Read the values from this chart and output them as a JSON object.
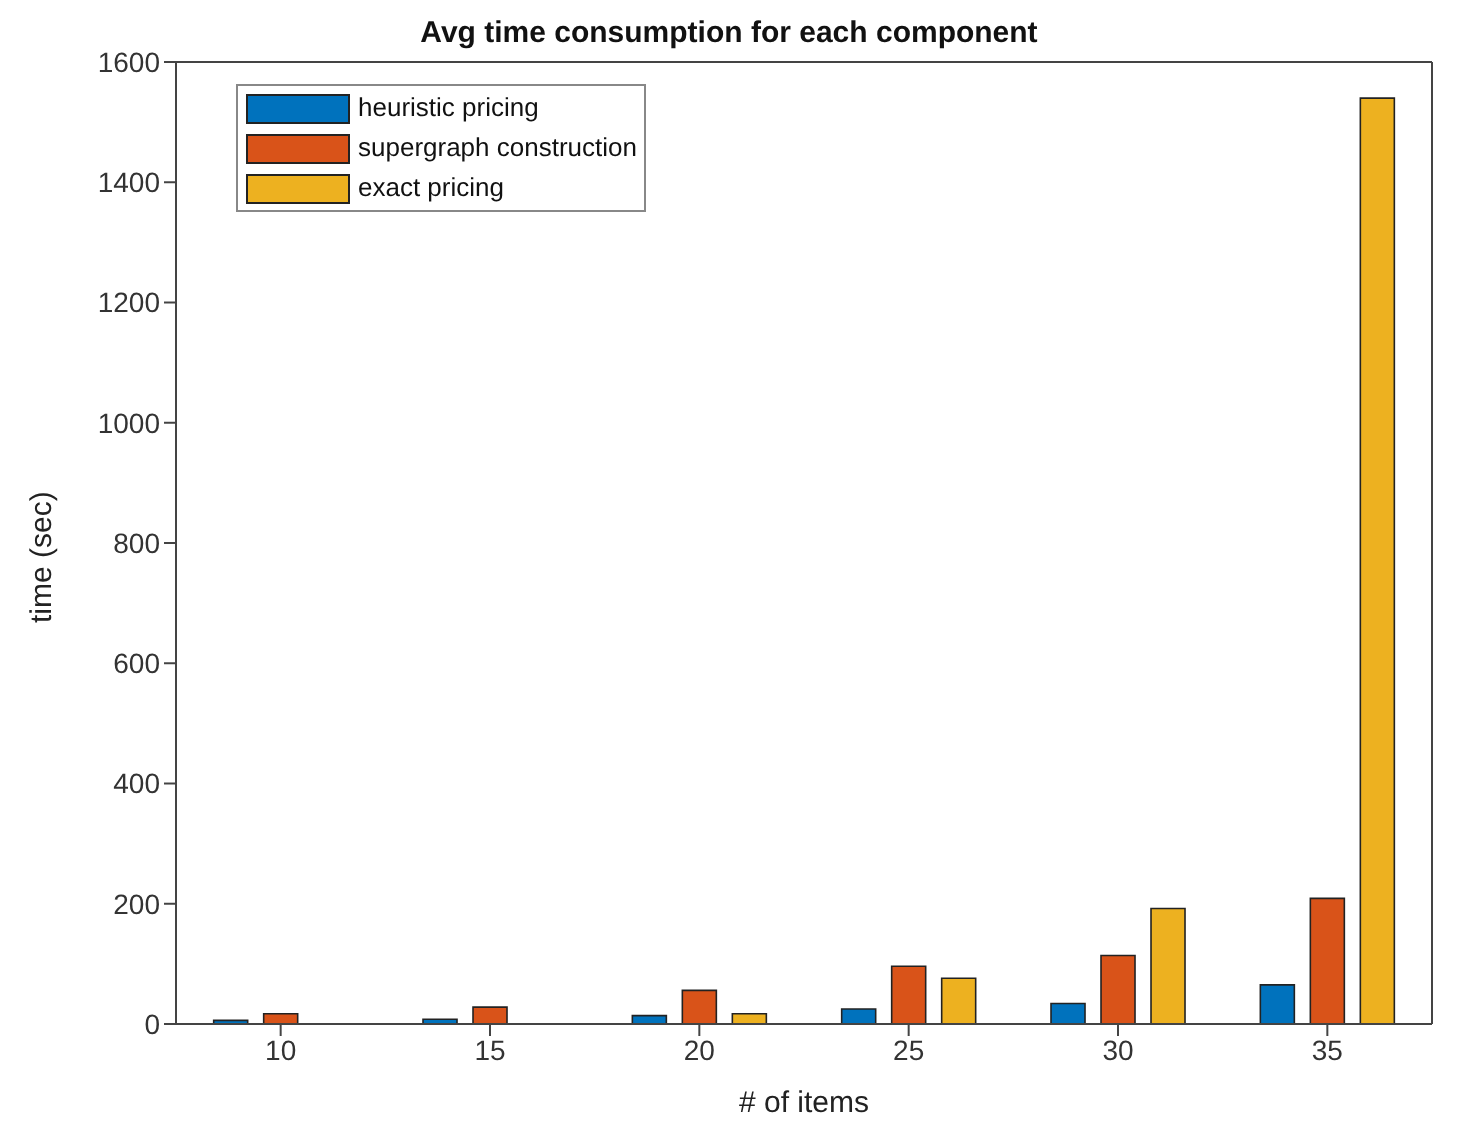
{
  "chart_data": {
    "type": "bar",
    "title": "Avg time consumption for each component",
    "xlabel": "# of items",
    "ylabel": "time (sec)",
    "categories": [
      "10",
      "15",
      "20",
      "25",
      "30",
      "35"
    ],
    "series": [
      {
        "name": "heuristic pricing",
        "color": "#0072bd",
        "values": [
          6,
          8,
          14,
          25,
          34,
          65
        ]
      },
      {
        "name": "supergraph construction",
        "color": "#d95319",
        "values": [
          17,
          28,
          56,
          96,
          114,
          209
        ]
      },
      {
        "name": "exact pricing",
        "color": "#edb120",
        "values": [
          0,
          0,
          17,
          76,
          192,
          1540
        ]
      }
    ],
    "ylim": [
      0,
      1600
    ],
    "yticks": [
      0,
      200,
      400,
      600,
      800,
      1000,
      1200,
      1400,
      1600
    ],
    "grid": false,
    "legend": "top left"
  }
}
